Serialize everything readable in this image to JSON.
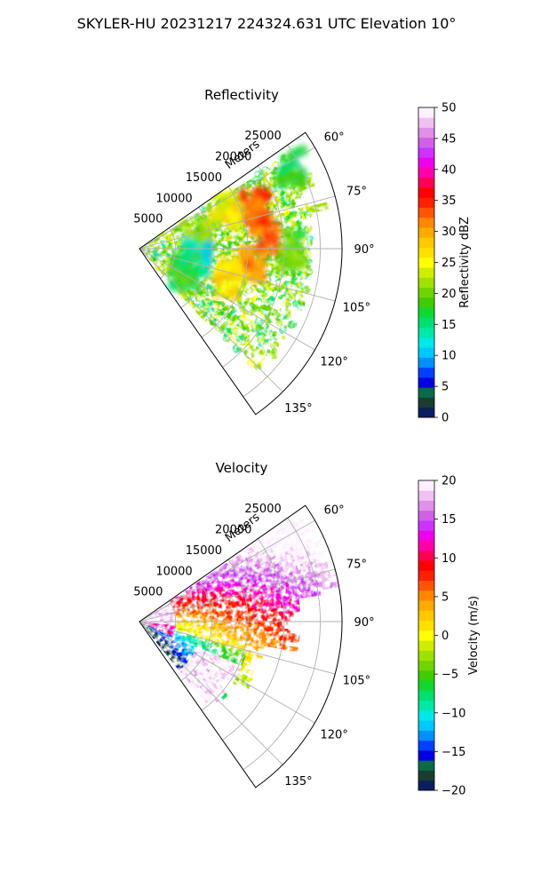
{
  "figure": {
    "title": "SKYLER-HU  20231217  224324.631 UTC Elevation 10°"
  },
  "chart_data": [
    {
      "type": "heatmap",
      "subtype": "polar-sector-ppi",
      "title": "Reflectivity",
      "range_label": "Meters",
      "range_ticks": [
        "5000",
        "10000",
        "15000",
        "20000",
        "25000"
      ],
      "range_tick_values": [
        5000,
        10000,
        15000,
        20000,
        25000
      ],
      "range_max": 28000,
      "azimuth_ticks": [
        "60°",
        "75°",
        "90°",
        "105°",
        "120°",
        "135°"
      ],
      "azimuth_tick_values": [
        60,
        75,
        90,
        105,
        120,
        135
      ],
      "azimuth_range": [
        55,
        145
      ],
      "grid": true,
      "colorbar": {
        "label": "Reflectivity dBZ",
        "ticks": [
          "0",
          "5",
          "10",
          "15",
          "20",
          "25",
          "30",
          "35",
          "40",
          "45",
          "50"
        ],
        "range": [
          0,
          50
        ],
        "colors": [
          "#0b1f5e",
          "#1a3d2f",
          "#0a6a4a",
          "#0000e0",
          "#0040ff",
          "#0090ff",
          "#00c8ff",
          "#00e8e8",
          "#00e8a8",
          "#00e070",
          "#10d830",
          "#40cc00",
          "#70d400",
          "#a0e000",
          "#d0ec00",
          "#ffff00",
          "#ffe000",
          "#ffc800",
          "#ffaa00",
          "#ff8800",
          "#ff5500",
          "#ff2000",
          "#ff0000",
          "#ff0055",
          "#ff00aa",
          "#ee00ee",
          "#cc33ff",
          "#d060e8",
          "#e090e8",
          "#f0c0f0",
          "#fff0ff"
        ]
      },
      "features": [
        {
          "az": 70,
          "r": 17000,
          "value": 36
        },
        {
          "az": 84,
          "r": 17500,
          "value": 36
        },
        {
          "az": 98,
          "r": 15500,
          "value": 34
        },
        {
          "az": 108,
          "r": 13000,
          "value": 30
        },
        {
          "az": 66,
          "r": 13000,
          "value": 28
        },
        {
          "az": 80,
          "r": 8000,
          "value": 25
        },
        {
          "az": 100,
          "r": 8000,
          "value": 16
        },
        {
          "az": 118,
          "r": 7000,
          "value": 20
        },
        {
          "az": 90,
          "r": 21000,
          "value": 22
        },
        {
          "az": 62,
          "r": 24000,
          "value": 20
        }
      ]
    },
    {
      "type": "heatmap",
      "subtype": "polar-sector-ppi",
      "title": "Velocity",
      "range_label": "Meters",
      "range_ticks": [
        "5000",
        "10000",
        "15000",
        "20000",
        "25000"
      ],
      "range_tick_values": [
        5000,
        10000,
        15000,
        20000,
        25000
      ],
      "range_max": 28000,
      "azimuth_ticks": [
        "60°",
        "75°",
        "90°",
        "105°",
        "120°",
        "135°"
      ],
      "azimuth_tick_values": [
        60,
        75,
        90,
        105,
        120,
        135
      ],
      "azimuth_range": [
        55,
        145
      ],
      "grid": true,
      "colorbar": {
        "label": "Velocity (m/s)",
        "ticks": [
          "−20",
          "−15",
          "−10",
          "−5",
          "0",
          "5",
          "10",
          "15",
          "20"
        ],
        "range": [
          -20,
          20
        ],
        "colors": [
          "#0b1f5e",
          "#1a3d2f",
          "#0a6a4a",
          "#0000e0",
          "#0040ff",
          "#0090ff",
          "#00c8ff",
          "#00e8e8",
          "#00e8a8",
          "#00e070",
          "#10d830",
          "#40cc00",
          "#70d400",
          "#a0e000",
          "#d0ec00",
          "#ffff00",
          "#ffe000",
          "#ffc800",
          "#ffaa00",
          "#ff8800",
          "#ff5500",
          "#ff2000",
          "#ff0000",
          "#ff0055",
          "#ff00aa",
          "#ee00ee",
          "#cc33ff",
          "#d060e8",
          "#e090e8",
          "#f0c0f0",
          "#fff0ff"
        ]
      }
    }
  ]
}
